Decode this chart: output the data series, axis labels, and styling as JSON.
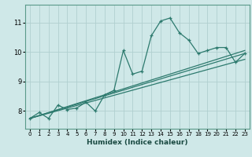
{
  "title": "",
  "xlabel": "Humidex (Indice chaleur)",
  "ylabel": "",
  "xlim": [
    -0.5,
    23.5
  ],
  "ylim": [
    7.4,
    11.6
  ],
  "xticks": [
    0,
    1,
    2,
    3,
    4,
    5,
    6,
    7,
    8,
    9,
    10,
    11,
    12,
    13,
    14,
    15,
    16,
    17,
    18,
    19,
    20,
    21,
    22,
    23
  ],
  "yticks": [
    8,
    9,
    10,
    11
  ],
  "ytick_labels": [
    "8",
    "9",
    "10",
    "11"
  ],
  "background_color": "#cfe8e8",
  "grid_color": "#b0d0d0",
  "line_color": "#2d7a6e",
  "line1_x": [
    0,
    1,
    2,
    3,
    4,
    5,
    6,
    7,
    8,
    9,
    10,
    11,
    12,
    13,
    14,
    15,
    16,
    17,
    18,
    19,
    20,
    21,
    22,
    23
  ],
  "line1_y": [
    7.75,
    7.95,
    7.75,
    8.2,
    8.05,
    8.1,
    8.3,
    8.0,
    8.55,
    8.7,
    10.05,
    9.25,
    9.35,
    10.55,
    11.05,
    11.15,
    10.65,
    10.4,
    9.95,
    10.05,
    10.15,
    10.15,
    9.65,
    9.95
  ],
  "line2_x": [
    0,
    23
  ],
  "line2_y": [
    7.75,
    9.95
  ],
  "line3_x": [
    0,
    23
  ],
  "line3_y": [
    7.75,
    10.05
  ],
  "line4_x": [
    0,
    23
  ],
  "line4_y": [
    7.75,
    9.75
  ]
}
